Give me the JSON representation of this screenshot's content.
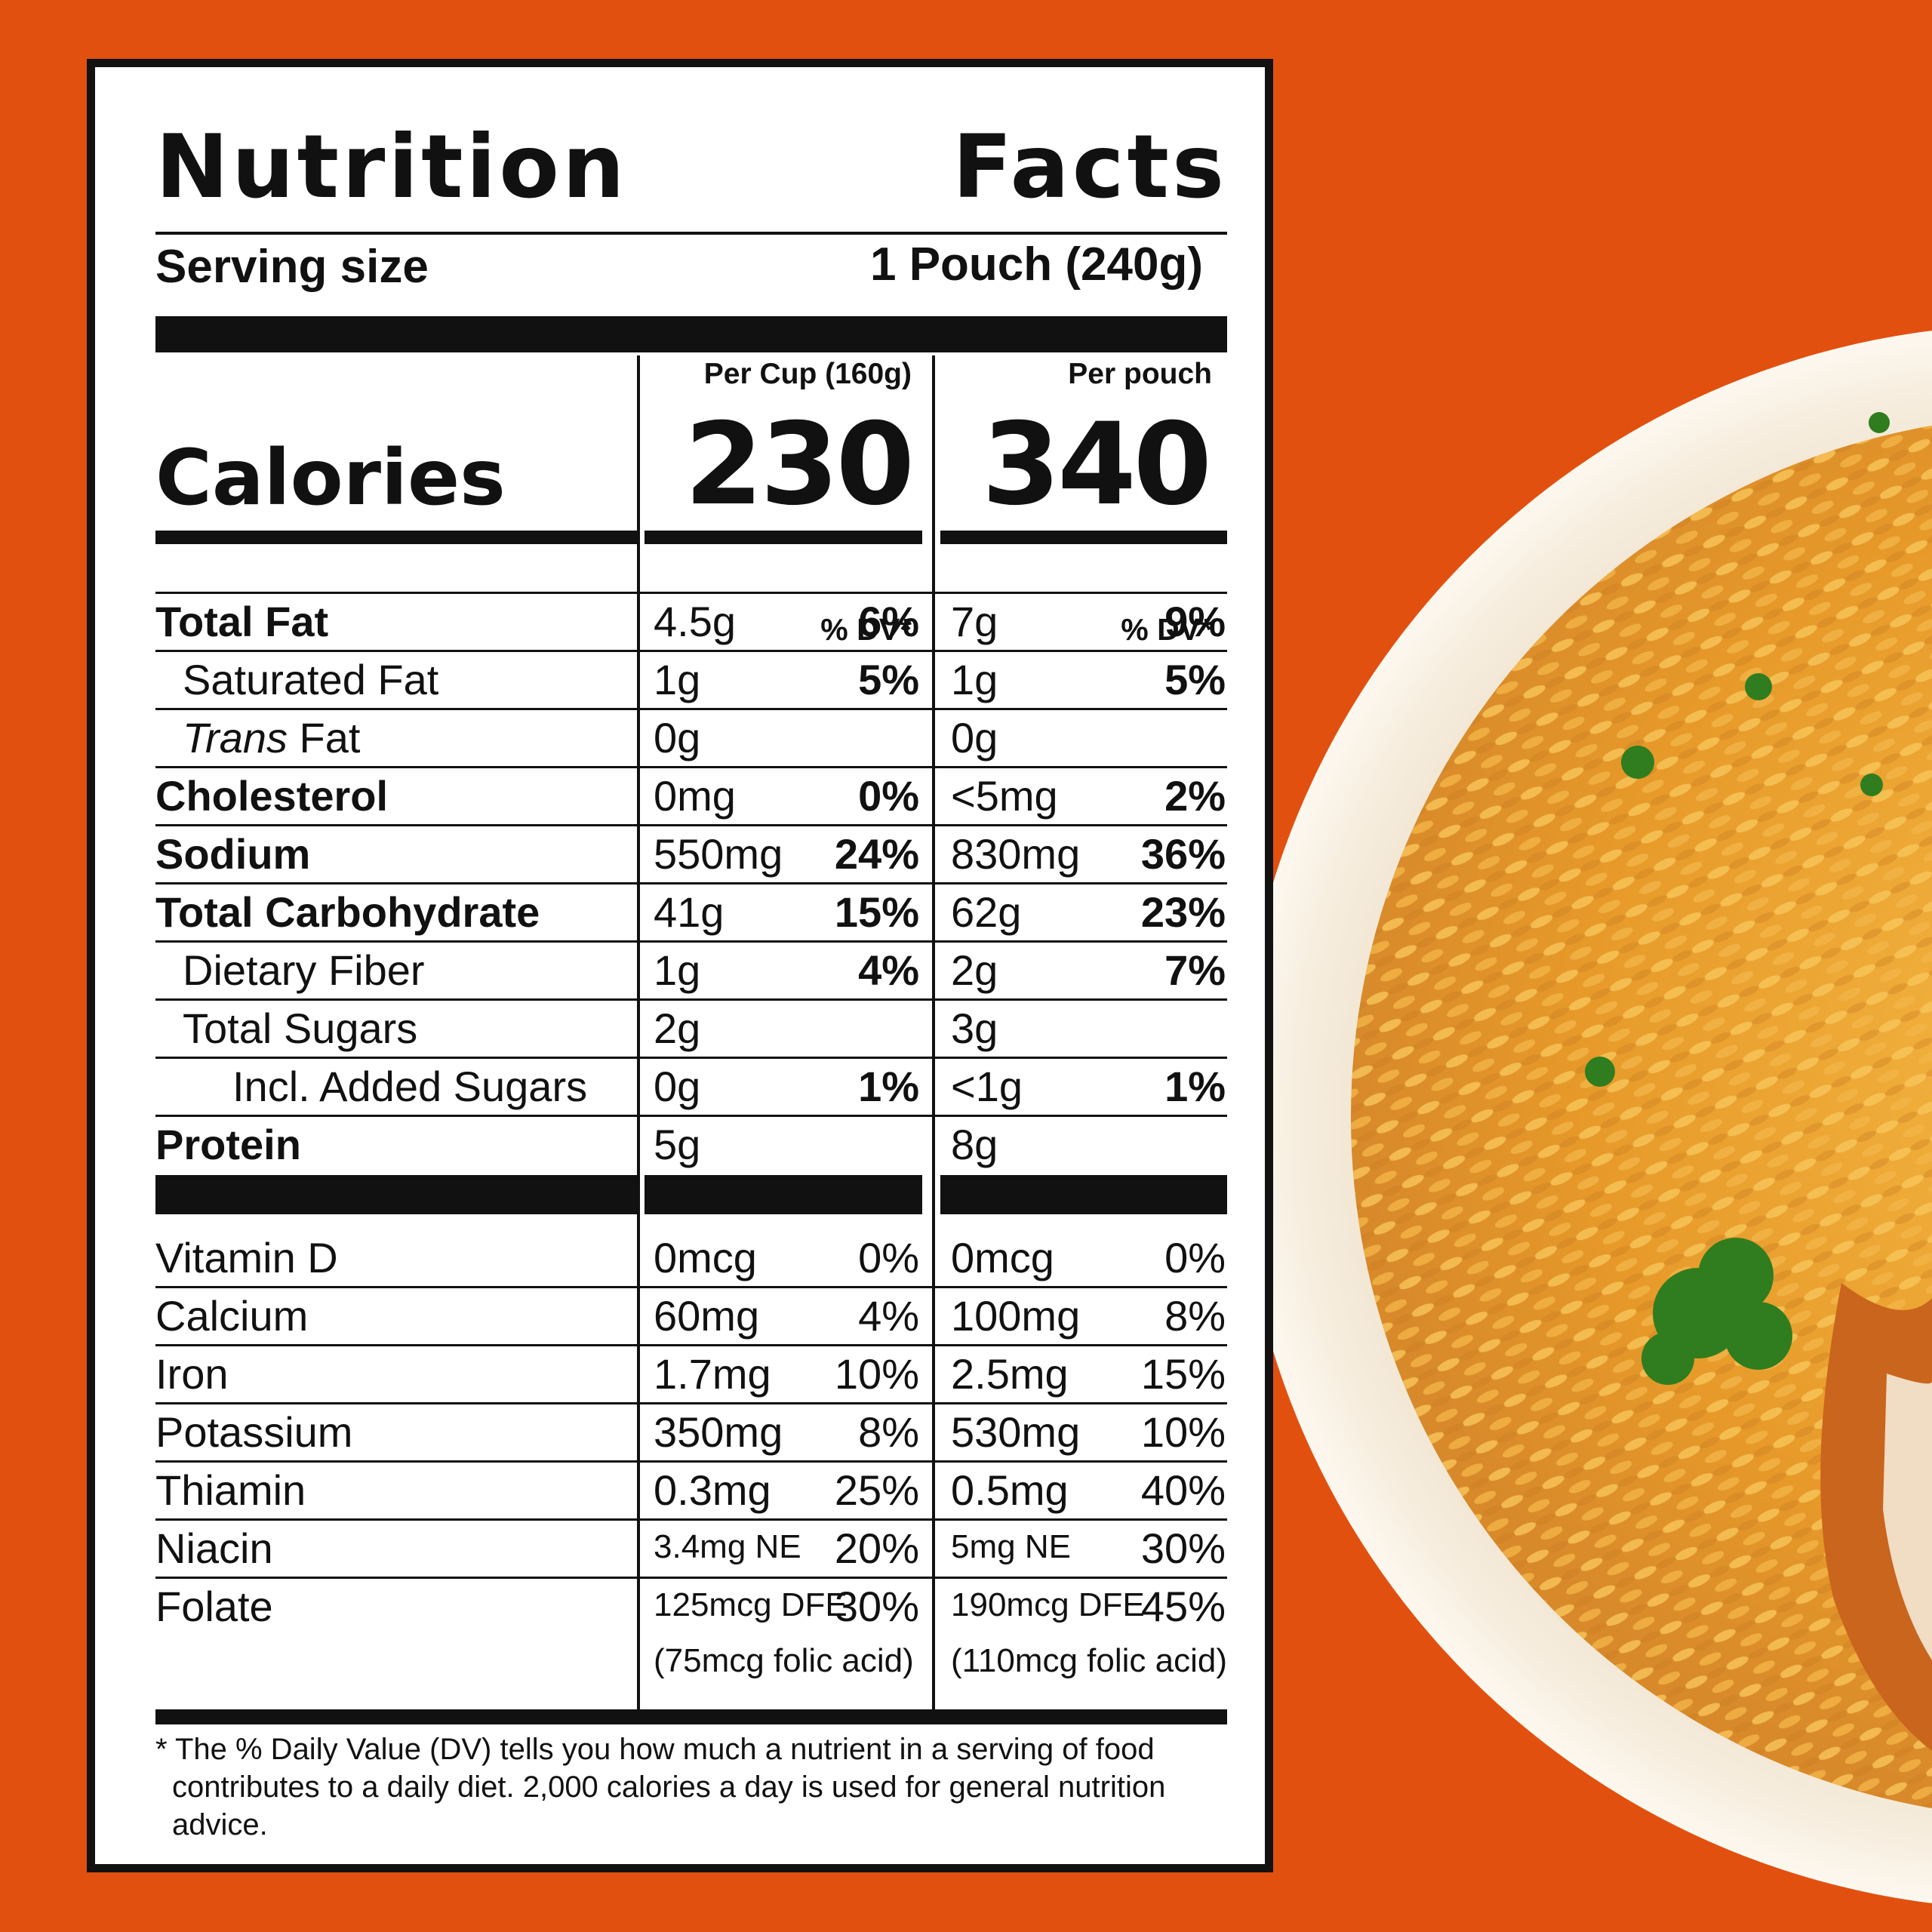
{
  "label": {
    "title_words": [
      "Nutrition",
      "Facts"
    ],
    "serving_label": "Serving size",
    "serving_value": "1 Pouch (240g)",
    "col_cup_header": "Per Cup (160g)",
    "col_pouch_header": "Per pouch",
    "calories_label": "Calories",
    "calories_cup": "230",
    "calories_pouch": "340",
    "dv_header": "% DV*",
    "nutrients": [
      {
        "name": "Total Fat",
        "cup": "4.5g",
        "cup_dv": "6%",
        "pouch": "7g",
        "pouch_dv": "9%"
      },
      {
        "name": "Saturated Fat",
        "cup": "1g",
        "cup_dv": "5%",
        "pouch": "1g",
        "pouch_dv": "5%"
      },
      {
        "name_italic": "Trans",
        "name_rest": " Fat",
        "cup": "0g",
        "cup_dv": "",
        "pouch": "0g",
        "pouch_dv": ""
      },
      {
        "name": "Cholesterol",
        "cup": "0mg",
        "cup_dv": "0%",
        "pouch": "<5mg",
        "pouch_dv": "2%"
      },
      {
        "name": "Sodium",
        "cup": "550mg",
        "cup_dv": "24%",
        "pouch": "830mg",
        "pouch_dv": "36%"
      },
      {
        "name": "Total Carbohydrate",
        "cup": "41g",
        "cup_dv": "15%",
        "pouch": "62g",
        "pouch_dv": "23%"
      },
      {
        "name": "Dietary Fiber",
        "cup": "1g",
        "cup_dv": "4%",
        "pouch": "2g",
        "pouch_dv": "7%"
      },
      {
        "name": "Total Sugars",
        "cup": "2g",
        "cup_dv": "",
        "pouch": "3g",
        "pouch_dv": ""
      },
      {
        "name": "Incl. Added Sugars",
        "cup": "0g",
        "cup_dv": "1%",
        "pouch": "<1g",
        "pouch_dv": "1%"
      },
      {
        "name": "Protein",
        "cup": "5g",
        "cup_dv": "",
        "pouch": "8g",
        "pouch_dv": ""
      }
    ],
    "vitamins": [
      {
        "name": "Vitamin D",
        "cup": "0mcg",
        "cup_dv": "0%",
        "pouch": "0mcg",
        "pouch_dv": "0%"
      },
      {
        "name": "Calcium",
        "cup": "60mg",
        "cup_dv": "4%",
        "pouch": "100mg",
        "pouch_dv": "8%"
      },
      {
        "name": "Iron",
        "cup": "1.7mg",
        "cup_dv": "10%",
        "pouch": "2.5mg",
        "pouch_dv": "15%"
      },
      {
        "name": "Potassium",
        "cup": "350mg",
        "cup_dv": "8%",
        "pouch": "530mg",
        "pouch_dv": "10%"
      },
      {
        "name": "Thiamin",
        "cup": "0.3mg",
        "cup_dv": "25%",
        "pouch": "0.5mg",
        "pouch_dv": "40%"
      },
      {
        "name": "Niacin",
        "cup": "3.4mg NE",
        "cup_dv": "20%",
        "pouch": "5mg NE",
        "pouch_dv": "30%"
      },
      {
        "name": "Folate",
        "cup": "125mcg DFE",
        "cup_dv": "30%",
        "pouch": "190mcg DFE",
        "pouch_dv": "45%",
        "cup_note": "(75mcg folic acid)",
        "pouch_note": "(110mcg folic acid)"
      }
    ],
    "footnote_line1": "* The % Daily Value (DV) tells you how much a nutrient in a serving of food",
    "footnote_line2": "contributes to a daily diet. 2,000 calories a day is used for general nutrition advice."
  },
  "colors": {
    "background": "#e2500f",
    "plate": "#f1e4cf",
    "rice": "#e9a22e"
  }
}
